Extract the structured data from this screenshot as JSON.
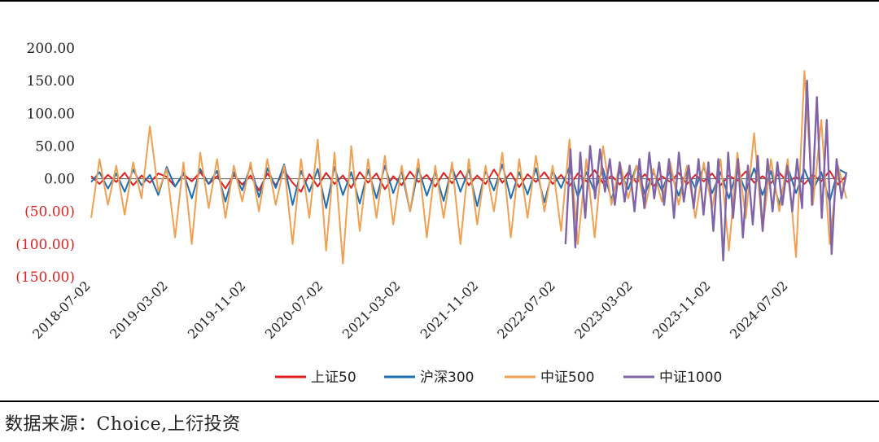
{
  "chart_data": {
    "type": "line",
    "title": "",
    "xlabel": "",
    "ylabel": "",
    "ylim": [
      -150,
      200
    ],
    "y_ticks": [
      200,
      150,
      100,
      50,
      0,
      -50,
      -100,
      -150
    ],
    "y_tick_labels": [
      "200.00",
      "150.00",
      "100.00",
      "50.00",
      "0.00",
      "(50.00)",
      "(100.00)",
      "(150.00)"
    ],
    "negative_tick_color": "#e02020",
    "positive_tick_color": "#222222",
    "x_tick_labels": [
      "2018-07-02",
      "2019-03-02",
      "2019-11-02",
      "2020-07-02",
      "2021-03-02",
      "2021-11-02",
      "2022-07-02",
      "2023-03-02",
      "2023-11-02",
      "2024-07-02"
    ],
    "x_start": "2018-07-02",
    "x_end": "2024-12-31",
    "grid": false,
    "legend_position": "bottom",
    "series": [
      {
        "name": "上证50",
        "color": "#e02020",
        "start": "2018-07-02",
        "end": "2024-12-31",
        "values": [
          4,
          -8,
          6,
          -5,
          9,
          -10,
          5,
          -6,
          8,
          3,
          -12,
          7,
          -4,
          10,
          -8,
          4,
          -15,
          6,
          -9,
          5,
          -18,
          8,
          -10,
          12,
          -6,
          -20,
          7,
          -12,
          9,
          -8,
          5,
          -14,
          10,
          -6,
          8,
          -16,
          4,
          -10,
          11,
          -5,
          6,
          -12,
          9,
          -7,
          12,
          -10,
          5,
          -8,
          14,
          -6,
          9,
          -13,
          7,
          -5,
          10,
          -8,
          6,
          -11,
          8,
          -4,
          13,
          -7,
          5,
          -9,
          10,
          -6,
          7,
          -12,
          4,
          -5,
          9,
          -8,
          6,
          -4,
          8,
          -10,
          5,
          -3,
          11,
          -6,
          4,
          -7,
          9,
          -5,
          3,
          -8,
          6,
          -4,
          12,
          -9,
          5
        ]
      },
      {
        "name": "沪深300",
        "color": "#1f6fb4",
        "start": "2018-07-02",
        "end": "2024-12-31",
        "values": [
          -5,
          10,
          -15,
          8,
          -20,
          14,
          -10,
          6,
          -25,
          18,
          -12,
          9,
          -30,
          15,
          -8,
          12,
          -35,
          10,
          -18,
          20,
          -28,
          16,
          -14,
          22,
          -40,
          12,
          -20,
          15,
          -45,
          18,
          -25,
          10,
          -38,
          14,
          -30,
          20,
          -22,
          12,
          -50,
          16,
          -26,
          10,
          -34,
          18,
          -20,
          14,
          -42,
          12,
          -18,
          22,
          -30,
          10,
          -24,
          16,
          -36,
          12,
          -14,
          18,
          -28,
          10,
          -20,
          15,
          -32,
          12,
          -16,
          20,
          -24,
          10,
          -18,
          14,
          -26,
          12,
          -15,
          18,
          -22,
          10,
          -30,
          14,
          -20,
          16,
          -25,
          12,
          -40,
          18,
          -22,
          14,
          -18,
          10,
          -35,
          15,
          8
        ]
      },
      {
        "name": "中证500",
        "color": "#f0a050",
        "start": "2018-07-02",
        "end": "2024-12-31",
        "values": [
          -60,
          30,
          -40,
          20,
          -55,
          25,
          -30,
          80,
          -20,
          15,
          -90,
          25,
          -100,
          40,
          -45,
          30,
          -60,
          20,
          -35,
          25,
          -50,
          30,
          -40,
          20,
          -100,
          30,
          -60,
          60,
          -110,
          40,
          -130,
          50,
          -80,
          30,
          -60,
          35,
          -70,
          20,
          -50,
          30,
          -90,
          20,
          -60,
          25,
          -100,
          30,
          -70,
          20,
          -50,
          40,
          -90,
          30,
          -60,
          35,
          -50,
          20,
          -80,
          60,
          -100,
          30,
          -90,
          50,
          -40,
          25,
          -30,
          20,
          -45,
          15,
          -35,
          25,
          -40,
          20,
          -60,
          25,
          -45,
          30,
          -110,
          40,
          -60,
          70,
          -80,
          30,
          -50,
          30,
          -120,
          165,
          -40,
          90,
          -100,
          20,
          -30
        ]
      },
      {
        "name": "中证1000",
        "color": "#8064a8",
        "start": "2022-08-01",
        "end": "2024-12-31",
        "values": [
          -100,
          45,
          -105,
          40,
          -60,
          50,
          -30,
          45,
          -20,
          30,
          -40,
          25,
          -35,
          20,
          -50,
          30,
          -45,
          40,
          -30,
          25,
          -40,
          30,
          -60,
          40,
          -35,
          20,
          -45,
          30,
          -55,
          25,
          -80,
          30,
          -125,
          40,
          -60,
          30,
          -90,
          20,
          -70,
          35,
          -80,
          30,
          -50,
          25,
          -40,
          20,
          -50,
          30,
          -45,
          150,
          -40,
          125,
          -60,
          90,
          -115,
          30,
          -30,
          10
        ]
      }
    ]
  },
  "source_text": "数据来源：Choice,上衍投资"
}
